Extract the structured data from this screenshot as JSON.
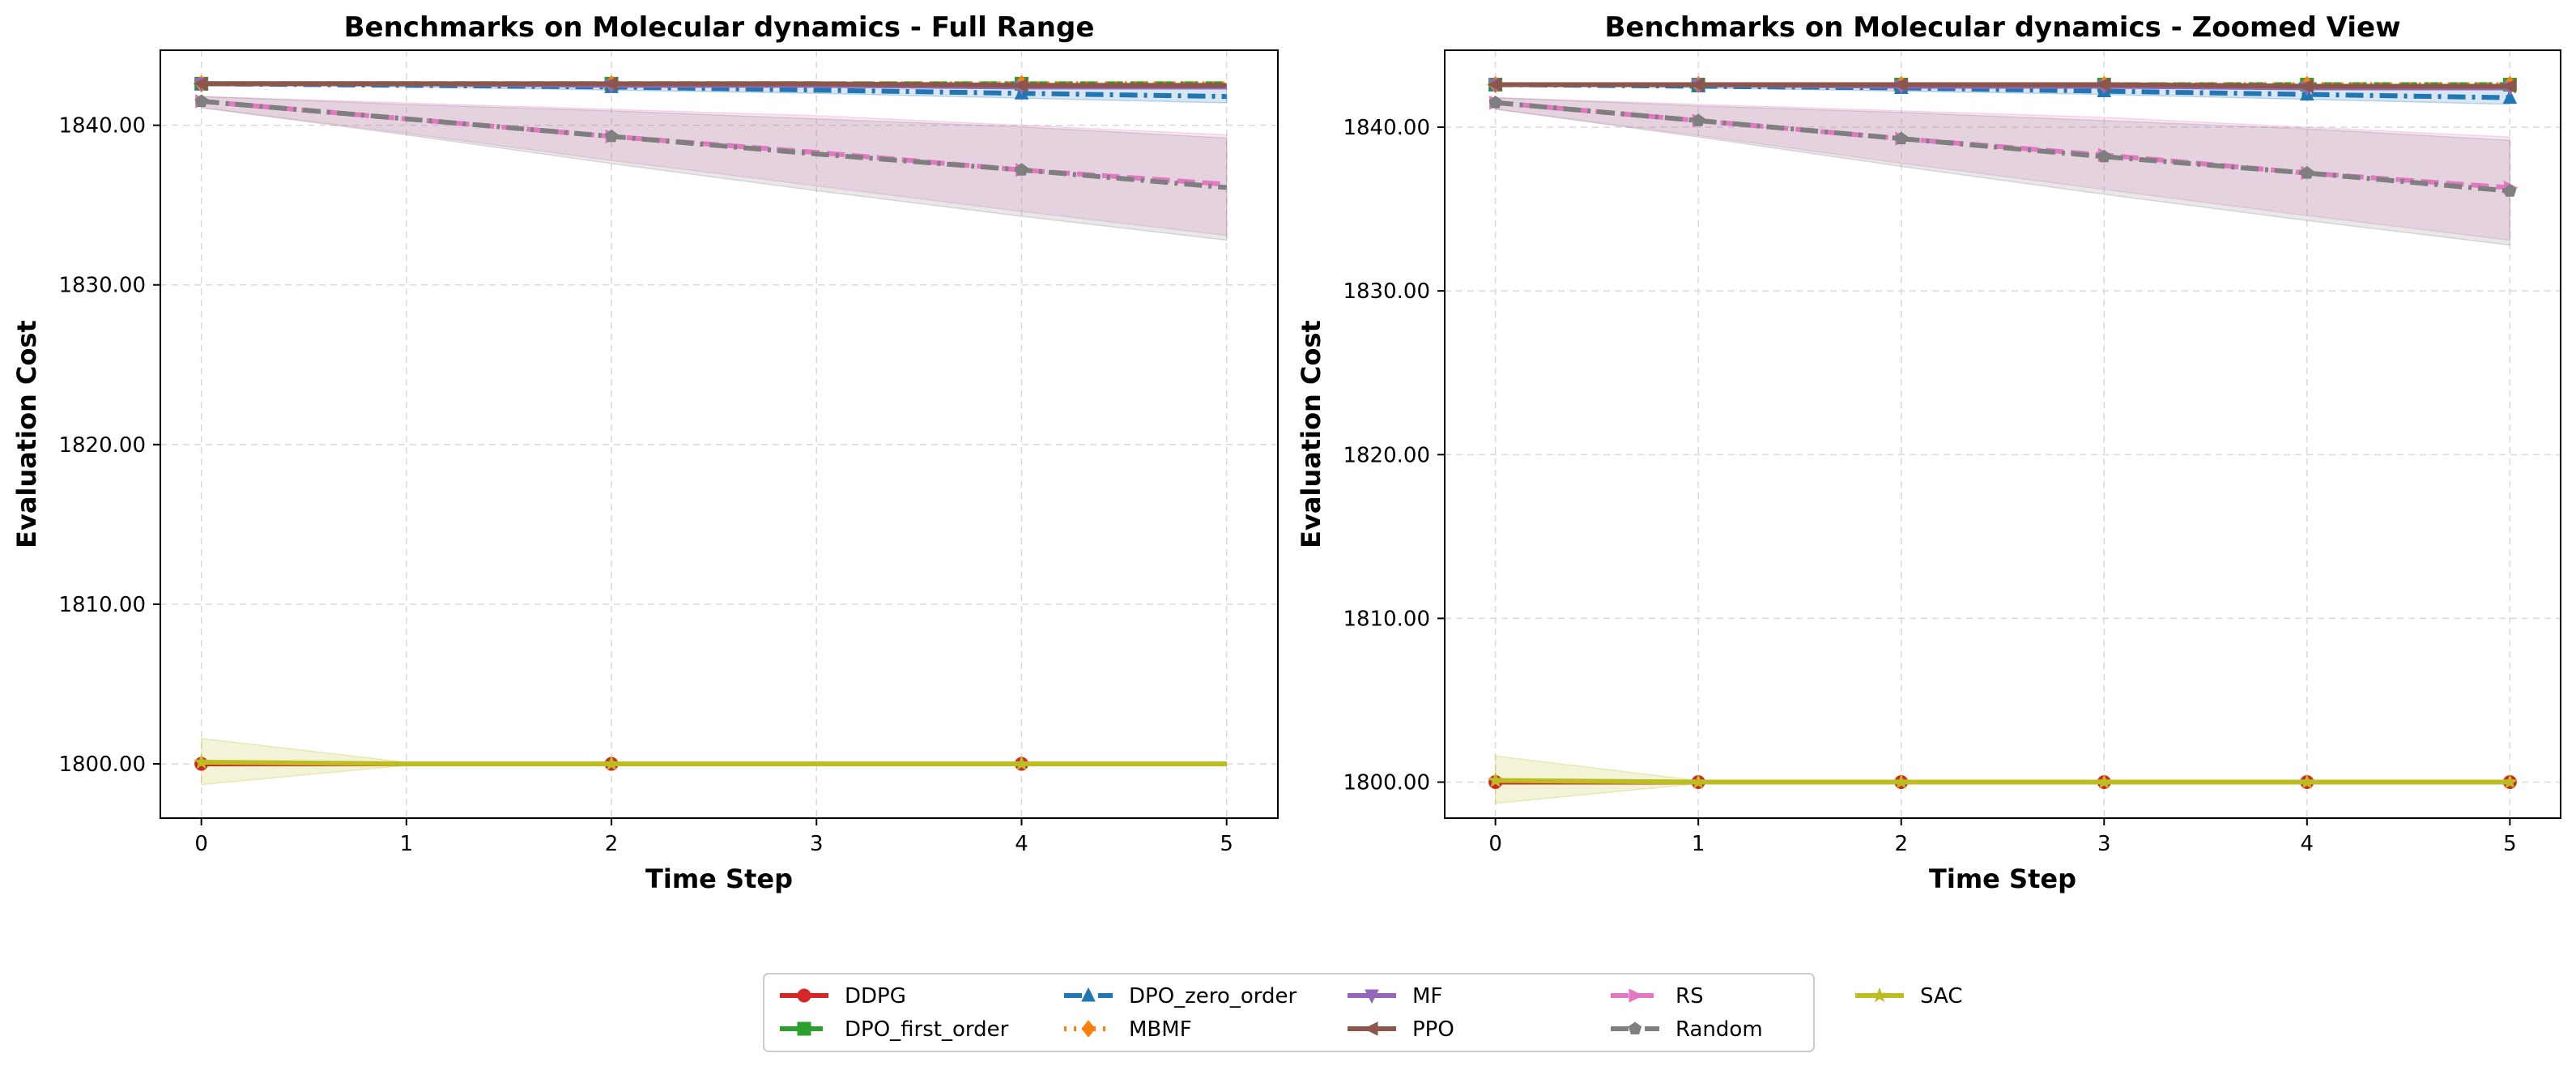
{
  "chart_data": [
    {
      "type": "line",
      "title": "Benchmarks on Molecular dynamics - Full Range",
      "xlabel": "Time Step",
      "ylabel": "Evaluation Cost",
      "xlim": [
        -0.2,
        5.25
      ],
      "ylim": [
        1796.6,
        1844.7
      ],
      "xticks": [
        0,
        1,
        2,
        3,
        4,
        5
      ],
      "yticks": [
        1800,
        1810,
        1820,
        1830,
        1840
      ],
      "ytick_labels": [
        "1800.00",
        "1810.00",
        "1820.00",
        "1830.00",
        "1840.00"
      ],
      "grid": true,
      "markers_at": [
        0,
        2,
        4
      ],
      "x": [
        0,
        1,
        2,
        3,
        4,
        5
      ],
      "series": [
        {
          "name": "DDPG",
          "color": "#d62728",
          "dash": "solid",
          "marker": "circle",
          "values": [
            1800.0,
            1800.0,
            1800.0,
            1800.0,
            1800.0,
            1800.0
          ]
        },
        {
          "name": "DPO_first_order",
          "color": "#2ca02c",
          "dash": "dashed",
          "marker": "square",
          "values": [
            1842.6,
            1842.6,
            1842.6,
            1842.6,
            1842.6,
            1842.6
          ]
        },
        {
          "name": "DPO_zero_order",
          "color": "#1f77b4",
          "dash": "dashdot",
          "marker": "triangle-up",
          "values": [
            1842.6,
            1842.5,
            1842.4,
            1842.2,
            1842.0,
            1841.8
          ],
          "band": [
            [
              1842.6,
              1842.6
            ],
            [
              1842.4,
              1842.6
            ],
            [
              1842.2,
              1842.6
            ],
            [
              1842.0,
              1842.5
            ],
            [
              1841.7,
              1842.4
            ],
            [
              1841.4,
              1842.3
            ]
          ]
        },
        {
          "name": "MBMF",
          "color": "#ff7f0e",
          "dash": "dotted",
          "marker": "diamond",
          "values": [
            1842.6,
            1842.6,
            1842.6,
            1842.6,
            1842.6,
            1842.6
          ]
        },
        {
          "name": "MF",
          "color": "#9467bd",
          "dash": "solid",
          "marker": "triangle-down",
          "values": [
            1842.6,
            1842.6,
            1842.5,
            1842.5,
            1842.4,
            1842.4
          ]
        },
        {
          "name": "PPO",
          "color": "#8c564b",
          "dash": "solid",
          "marker": "triangle-left",
          "values": [
            1842.6,
            1842.6,
            1842.6,
            1842.6,
            1842.5,
            1842.5
          ]
        },
        {
          "name": "RS",
          "color": "#e377c2",
          "dash": "dashed",
          "marker": "triangle-right",
          "values": [
            1841.5,
            1840.4,
            1839.3,
            1838.3,
            1837.2,
            1836.3
          ],
          "band": [
            [
              1841.1,
              1841.8
            ],
            [
              1839.5,
              1841.4
            ],
            [
              1837.8,
              1841.0
            ],
            [
              1836.2,
              1840.6
            ],
            [
              1834.6,
              1840.0
            ],
            [
              1833.1,
              1839.4
            ]
          ]
        },
        {
          "name": "Random",
          "color": "#7f7f7f",
          "dash": "dashdot",
          "marker": "pentagon",
          "values": [
            1841.5,
            1840.4,
            1839.3,
            1838.2,
            1837.2,
            1836.1
          ],
          "band": [
            [
              1841.1,
              1841.8
            ],
            [
              1839.4,
              1841.3
            ],
            [
              1837.6,
              1840.9
            ],
            [
              1835.9,
              1840.4
            ],
            [
              1834.3,
              1839.9
            ],
            [
              1832.8,
              1839.2
            ]
          ]
        },
        {
          "name": "SAC",
          "color": "#bcbd22",
          "dash": "solid",
          "marker": "star",
          "values": [
            1800.1,
            1800.0,
            1800.0,
            1800.0,
            1800.0,
            1800.0
          ],
          "band": [
            [
              1798.7,
              1801.6
            ],
            [
              1799.9,
              1800.1
            ],
            [
              1799.95,
              1800.05
            ],
            [
              1799.95,
              1800.05
            ],
            [
              1799.95,
              1800.05
            ],
            [
              1799.95,
              1800.05
            ]
          ]
        }
      ]
    },
    {
      "type": "line",
      "title": "Benchmarks on Molecular dynamics - Zoomed View",
      "xlabel": "Time Step",
      "ylabel": "Evaluation Cost",
      "xlim": [
        -0.25,
        5.25
      ],
      "ylim": [
        1797.8,
        1844.7
      ],
      "xticks": [
        0,
        1,
        2,
        3,
        4,
        5
      ],
      "yticks": [
        1800,
        1810,
        1820,
        1830,
        1840
      ],
      "ytick_labels": [
        "1800.00",
        "1810.00",
        "1820.00",
        "1830.00",
        "1840.00"
      ],
      "grid": true,
      "markers_at": [
        0,
        1,
        2,
        3,
        4,
        5
      ],
      "x": [
        0,
        1,
        2,
        3,
        4,
        5
      ],
      "series": [
        {
          "name": "DDPG",
          "color": "#d62728",
          "dash": "solid",
          "marker": "circle",
          "values": [
            1800.0,
            1800.0,
            1800.0,
            1800.0,
            1800.0,
            1800.0
          ]
        },
        {
          "name": "DPO_first_order",
          "color": "#2ca02c",
          "dash": "dashed",
          "marker": "square",
          "values": [
            1842.6,
            1842.6,
            1842.6,
            1842.6,
            1842.6,
            1842.6
          ]
        },
        {
          "name": "DPO_zero_order",
          "color": "#1f77b4",
          "dash": "dashdot",
          "marker": "triangle-up",
          "values": [
            1842.6,
            1842.5,
            1842.4,
            1842.2,
            1842.0,
            1841.8
          ],
          "band": [
            [
              1842.6,
              1842.6
            ],
            [
              1842.4,
              1842.6
            ],
            [
              1842.2,
              1842.6
            ],
            [
              1842.0,
              1842.5
            ],
            [
              1841.7,
              1842.4
            ],
            [
              1841.4,
              1842.3
            ]
          ]
        },
        {
          "name": "MBMF",
          "color": "#ff7f0e",
          "dash": "dotted",
          "marker": "diamond",
          "values": [
            1842.6,
            1842.6,
            1842.6,
            1842.6,
            1842.6,
            1842.6
          ]
        },
        {
          "name": "MF",
          "color": "#9467bd",
          "dash": "solid",
          "marker": "triangle-down",
          "values": [
            1842.6,
            1842.6,
            1842.5,
            1842.5,
            1842.4,
            1842.4
          ]
        },
        {
          "name": "PPO",
          "color": "#8c564b",
          "dash": "solid",
          "marker": "triangle-left",
          "values": [
            1842.6,
            1842.6,
            1842.6,
            1842.6,
            1842.5,
            1842.5
          ]
        },
        {
          "name": "RS",
          "color": "#e377c2",
          "dash": "dashed",
          "marker": "triangle-right",
          "values": [
            1841.5,
            1840.4,
            1839.3,
            1838.3,
            1837.2,
            1836.3
          ],
          "band": [
            [
              1841.1,
              1841.8
            ],
            [
              1839.5,
              1841.4
            ],
            [
              1837.8,
              1841.0
            ],
            [
              1836.2,
              1840.6
            ],
            [
              1834.6,
              1840.0
            ],
            [
              1833.1,
              1839.4
            ]
          ]
        },
        {
          "name": "Random",
          "color": "#7f7f7f",
          "dash": "dashdot",
          "marker": "pentagon",
          "values": [
            1841.5,
            1840.4,
            1839.3,
            1838.2,
            1837.2,
            1836.1
          ],
          "band": [
            [
              1841.1,
              1841.8
            ],
            [
              1839.4,
              1841.3
            ],
            [
              1837.6,
              1840.9
            ],
            [
              1835.9,
              1840.4
            ],
            [
              1834.3,
              1839.9
            ],
            [
              1832.8,
              1839.2
            ]
          ]
        },
        {
          "name": "SAC",
          "color": "#bcbd22",
          "dash": "solid",
          "marker": "star",
          "values": [
            1800.1,
            1800.0,
            1800.0,
            1800.0,
            1800.0,
            1800.0
          ],
          "band": [
            [
              1798.7,
              1801.6
            ],
            [
              1799.9,
              1800.1
            ],
            [
              1799.95,
              1800.05
            ],
            [
              1799.95,
              1800.05
            ],
            [
              1799.95,
              1800.05
            ],
            [
              1799.95,
              1800.05
            ]
          ]
        }
      ]
    }
  ],
  "legend": {
    "placement": "bottom-center",
    "columns": 5,
    "items": [
      "DDPG",
      "DPO_first_order",
      "DPO_zero_order",
      "MBMF",
      "MF",
      "PPO",
      "RS",
      "Random",
      "SAC"
    ]
  }
}
